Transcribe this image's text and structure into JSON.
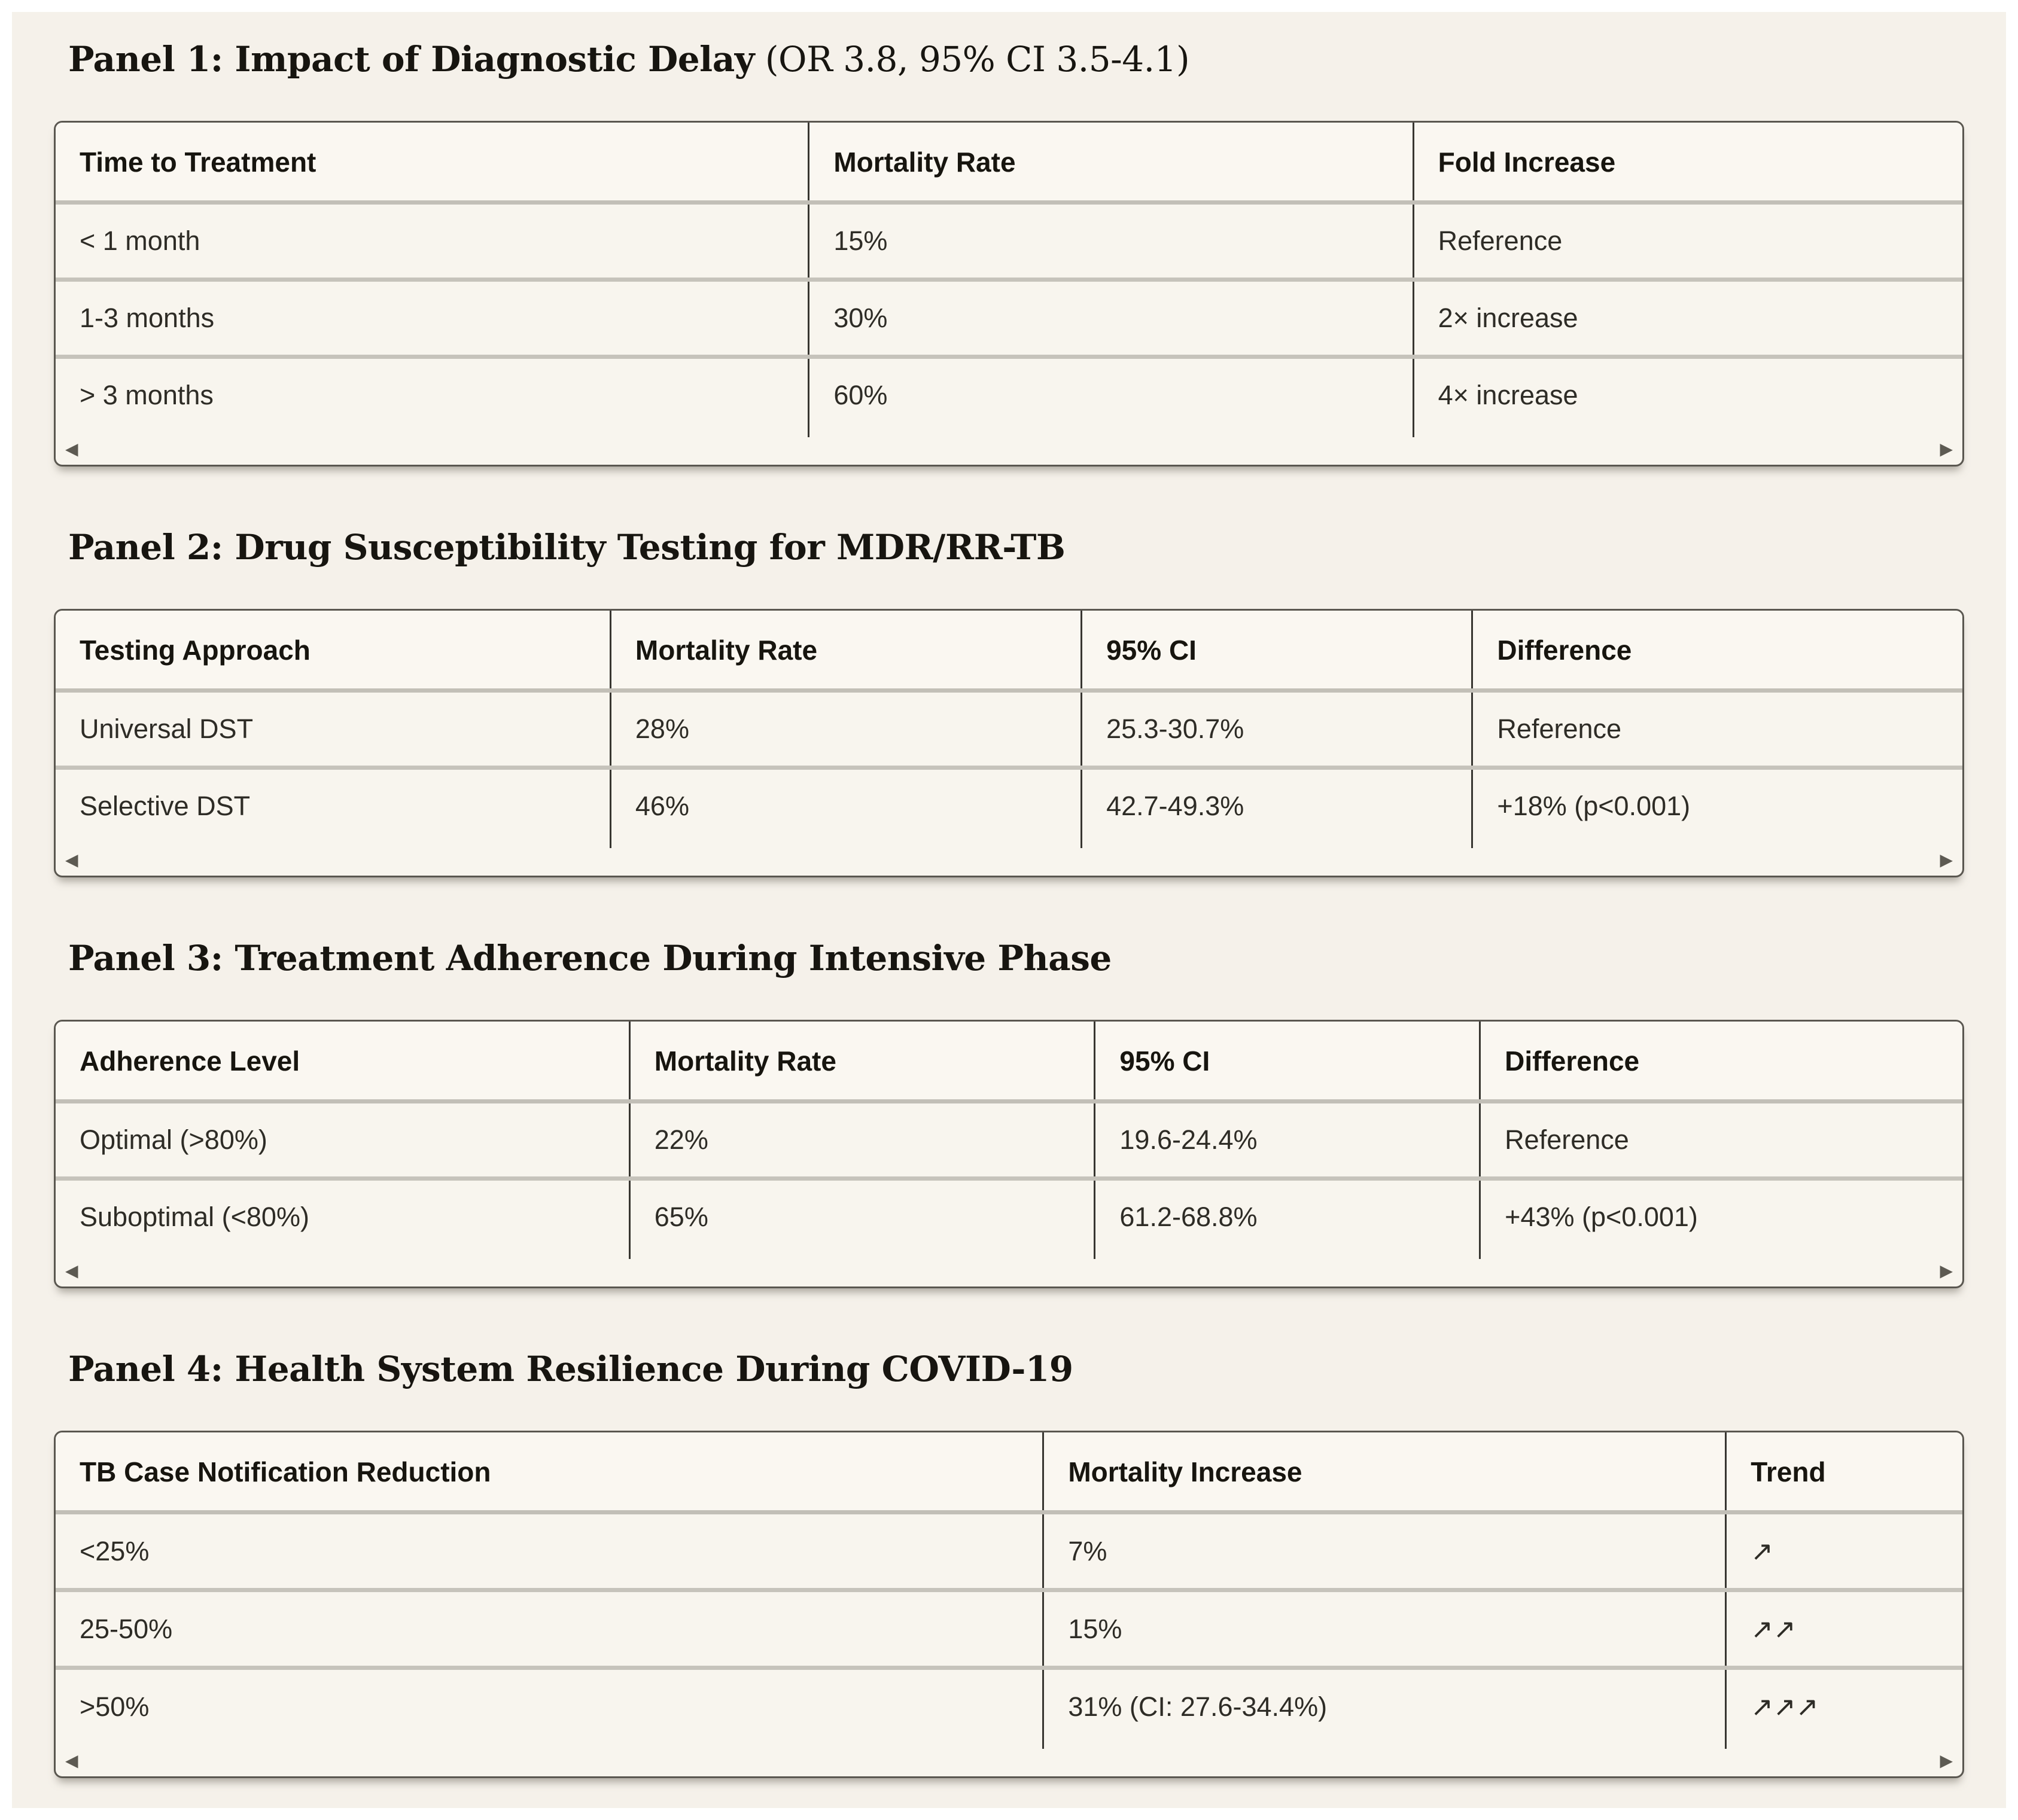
{
  "page": {
    "background_color": "#f5f1ea",
    "frame_color": "#ffffff",
    "card_border_color": "#5a5750",
    "divider_color": "#383631",
    "row_separator_color": "#c2bfb7",
    "title_color": "#171510",
    "text_color": "#2e2c26"
  },
  "icons": {
    "scroll_left": "◀",
    "scroll_right": "▶"
  },
  "panels": [
    {
      "title_bold": "Panel 1: Impact of Diagnostic Delay",
      "title_suffix": " (OR 3.8, 95% CI 3.5-4.1)",
      "columns": [
        "Time to Treatment",
        "Mortality Rate",
        "Fold Increase"
      ],
      "col_widths": [
        "39.5%",
        "31.7%",
        "28.8%"
      ],
      "rows": [
        [
          "< 1 month",
          "15%",
          "Reference"
        ],
        [
          "1-3 months",
          "30%",
          "2× increase"
        ],
        [
          "> 3 months",
          "60%",
          "4× increase"
        ]
      ]
    },
    {
      "title_bold": "Panel 2: Drug Susceptibility Testing for MDR/RR-TB",
      "title_suffix": "",
      "columns": [
        "Testing Approach",
        "Mortality Rate",
        "95% CI",
        "Difference"
      ],
      "col_widths": [
        "29.1%",
        "24.7%",
        "20.5%",
        "25.7%"
      ],
      "rows": [
        [
          "Universal DST",
          "28%",
          "25.3-30.7%",
          "Reference"
        ],
        [
          "Selective DST",
          "46%",
          "42.7-49.3%",
          "+18% (p<0.001)"
        ]
      ]
    },
    {
      "title_bold": "Panel 3: Treatment Adherence During Intensive Phase",
      "title_suffix": "",
      "columns": [
        "Adherence Level",
        "Mortality Rate",
        "95% CI",
        "Difference"
      ],
      "col_widths": [
        "30.1%",
        "24.4%",
        "20.2%",
        "25.3%"
      ],
      "rows": [
        [
          "Optimal (>80%)",
          "22%",
          "19.6-24.4%",
          "Reference"
        ],
        [
          "Suboptimal (<80%)",
          "65%",
          "61.2-68.8%",
          "+43% (p<0.001)"
        ]
      ]
    },
    {
      "title_bold": "Panel 4: Health System Resilience During COVID-19",
      "title_suffix": "",
      "columns": [
        "TB Case Notification Reduction",
        "Mortality Increase",
        "Trend"
      ],
      "col_widths": [
        "51.8%",
        "35.8%",
        "12.4%"
      ],
      "rows": [
        [
          "<25%",
          "7%",
          "↗"
        ],
        [
          "25-50%",
          "15%",
          "↗↗"
        ],
        [
          ">50%",
          "31% (CI: 27.6-34.4%)",
          "↗↗↗"
        ]
      ]
    }
  ]
}
